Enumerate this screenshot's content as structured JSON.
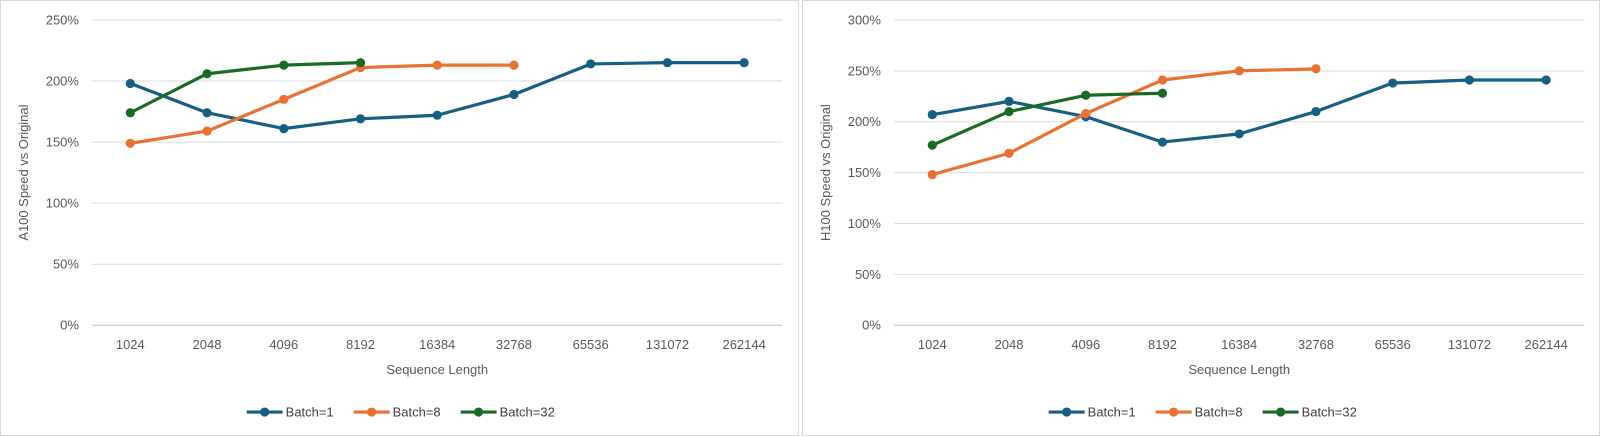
{
  "page": {
    "background": "#FFFFFF",
    "panel_border": "#D9D9D9"
  },
  "colors": {
    "grid": "#D9D9D9",
    "axis_line": "#BFBFBF",
    "tick_text": "#595959",
    "legend_text": "#404040",
    "series_blue": "#156082",
    "series_orange": "#E97132",
    "series_green": "#196B24"
  },
  "chart_data": [
    {
      "type": "line",
      "title": "",
      "xlabel": "Sequence Length",
      "ylabel": "A100 Speed vs Original",
      "categories": [
        "1024",
        "2048",
        "4096",
        "8192",
        "16384",
        "32768",
        "65536",
        "131072",
        "262144"
      ],
      "ylim": [
        0,
        250
      ],
      "ytick_step": 50,
      "ytick_format": "percent",
      "grid": true,
      "legend_position": "bottom",
      "series": [
        {
          "name": "Batch=1",
          "color": "#156082",
          "values": [
            198,
            174,
            161,
            169,
            172,
            189,
            214,
            215,
            215
          ]
        },
        {
          "name": "Batch=8",
          "color": "#E97132",
          "values": [
            149,
            159,
            185,
            211,
            213,
            213,
            null,
            null,
            null
          ]
        },
        {
          "name": "Batch=32",
          "color": "#196B24",
          "values": [
            174,
            206,
            213,
            215,
            null,
            null,
            null,
            null,
            null
          ]
        }
      ]
    },
    {
      "type": "line",
      "title": "",
      "xlabel": "Sequence Length",
      "ylabel": "H100 Speed vs Original",
      "categories": [
        "1024",
        "2048",
        "4096",
        "8192",
        "16384",
        "32768",
        "65536",
        "131072",
        "262144"
      ],
      "ylim": [
        0,
        300
      ],
      "ytick_step": 50,
      "ytick_format": "percent",
      "grid": true,
      "legend_position": "bottom",
      "series": [
        {
          "name": "Batch=1",
          "color": "#156082",
          "values": [
            207,
            220,
            205,
            180,
            188,
            210,
            238,
            241,
            241
          ]
        },
        {
          "name": "Batch=8",
          "color": "#E97132",
          "values": [
            148,
            169,
            208,
            241,
            250,
            252,
            null,
            null,
            null
          ]
        },
        {
          "name": "Batch=32",
          "color": "#196B24",
          "values": [
            177,
            210,
            226,
            228,
            null,
            null,
            null,
            null,
            null
          ]
        }
      ]
    }
  ]
}
